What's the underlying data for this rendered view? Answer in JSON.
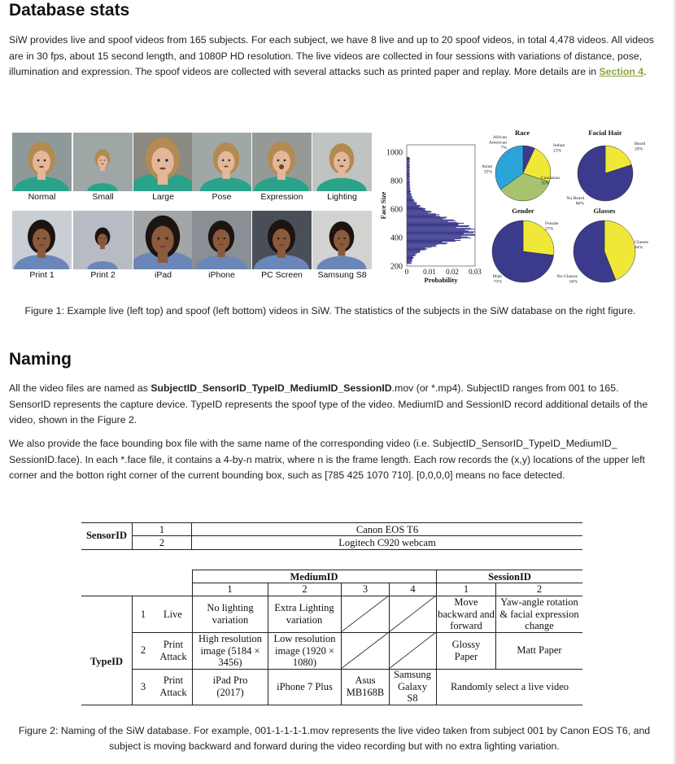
{
  "stats": {
    "heading": "Database stats",
    "para_before_link": "SiW provides live and spoof videos from 165 subjects. For each subject, we have 8 live and up to 20 spoof videos, in total 4,478 videos. All videos are in 30 fps, about 15 second length, and 1080P HD resolution. The live videos are collected in four sessions with variations of distance, pose, illumination and expression. The spoof videos are collected with several attacks such as printed paper and replay. More details are in ",
    "link": "Section 4",
    "para_after_link": ".",
    "live_labels": [
      "Normal",
      "Small",
      "Large",
      "Pose",
      "Expression",
      "Lighting"
    ],
    "spoof_labels": [
      "Print 1",
      "Print 2",
      "iPad",
      "iPhone",
      "PC Screen",
      "Samsung S8"
    ],
    "caption": "Figure 1: Example live (left top) and spoof (left bottom) videos in SiW. The statistics of the subjects in the SiW database on the right figure."
  },
  "chart_data": [
    {
      "type": "bar",
      "orientation": "horizontal",
      "ylabel": "Face Size",
      "xlabel": "Probability",
      "ylim": [
        200,
        1050
      ],
      "xlim": [
        0,
        0.03
      ],
      "yticks": [
        "1000",
        "800",
        "600",
        "400",
        "200"
      ],
      "xticks": [
        "0",
        "0.01",
        "0.02",
        "0.03"
      ],
      "color": "#3b3a8c"
    },
    {
      "type": "pie",
      "title": "Race",
      "labels": [
        "African American",
        "Indian",
        "Caucasian",
        "Asian"
      ],
      "label_texts": [
        "African\nAmerican\n7%",
        "Indian\n23%",
        "Caucasian\n35%",
        "Asian\n35%"
      ],
      "values": [
        7,
        23,
        35,
        35
      ],
      "colors": [
        "#3b3a8c",
        "#f0e838",
        "#a7c370",
        "#2ca3d9"
      ]
    },
    {
      "type": "pie",
      "title": "Facial Hair",
      "labels": [
        "Beard",
        "No Beard"
      ],
      "label_texts": [
        "Beard\n20%",
        "No Beard\n80%"
      ],
      "values": [
        20,
        80
      ],
      "colors": [
        "#f0e838",
        "#3b3a8c"
      ]
    },
    {
      "type": "pie",
      "title": "Gender",
      "labels": [
        "Female",
        "Male"
      ],
      "label_texts": [
        "Female\n27%",
        "Male\n73%"
      ],
      "values": [
        27,
        73
      ],
      "colors": [
        "#f0e838",
        "#3b3a8c"
      ]
    },
    {
      "type": "pie",
      "title": "Glasses",
      "labels": [
        "Glasses",
        "No Glasses"
      ],
      "label_texts": [
        "Glasses\n44%",
        "No Glasses\n56%"
      ],
      "values": [
        44,
        56
      ],
      "colors": [
        "#f0e838",
        "#3b3a8c"
      ]
    }
  ],
  "naming": {
    "heading": "Naming",
    "p1_before": "All the video files are named as ",
    "p1_bold": "SubjectID_SensorID_TypeID_MediumID_SessionID",
    "p1_after": ".mov (or *.mp4). SubjectID ranges from 001 to 165. SensorID represents the capture device. TypeID represents the spoof type of the video. MediumID and SessionID record additional details of the video, shown in the Figure 2.",
    "p2": "We also provide the face bounding box file with the same name of the corresponding video (i.e. SubjectID_SensorID_TypeID_MediumID_ SessionID.face). In each *.face file, it contains a 4-by-n matrix, where n is the frame length. Each row records the (x,y) locations of the upper left corner and the botton right corner of the current bounding box, such as [785 425 1070 710]. [0,0,0,0] means no face detected."
  },
  "sensor_table": {
    "label": "SensorID",
    "rows": [
      {
        "id": "1",
        "device": "Canon EOS T6"
      },
      {
        "id": "2",
        "device": "Logitech C920 webcam"
      }
    ]
  },
  "type_table": {
    "mediumid_header": "MediumID",
    "sessionid_header": "SessionID",
    "medium_nums": [
      "1",
      "2",
      "3",
      "4"
    ],
    "session_nums": [
      "1",
      "2"
    ],
    "typeid_label": "TypeID",
    "rows": [
      {
        "id": "1",
        "type": "Live",
        "m1": "No lighting variation",
        "m2": "Extra Lighting variation",
        "s1": "Move backward and forward",
        "s2": "Yaw-angle rotation & facial expression change"
      },
      {
        "id": "2",
        "type": "Print Attack",
        "m1": "High resolution image (5184 × 3456)",
        "m2": "Low resolution image (1920 × 1080)",
        "s1": "Glossy Paper",
        "s2": "Matt Paper"
      },
      {
        "id": "3",
        "type": "Print Attack",
        "m1": "iPad Pro (2017)",
        "m2": "iPhone 7 Plus",
        "m3": "Asus MB168B",
        "m4": "Samsung Galaxy S8",
        "s": "Randomly select a live video"
      }
    ]
  },
  "figure2_caption": "Figure 2: Naming of the SiW database. For example, 001-1-1-1-1.mov represents the live video taken from subject 001 by Canon EOS T6, and subject is moving backward and forward during the video recording but with no extra lighting variation."
}
